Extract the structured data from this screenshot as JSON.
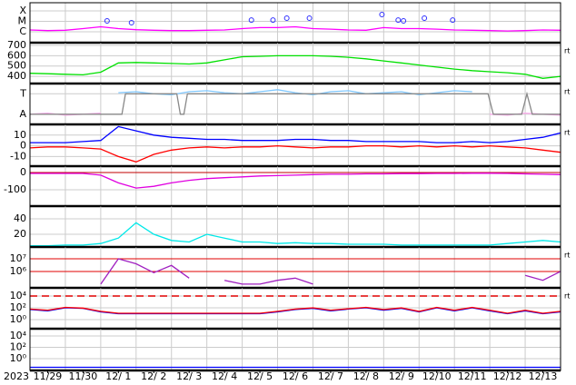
{
  "chart_data": {
    "type": "panels",
    "year_label": "2023",
    "xlim": [
      0,
      15
    ],
    "xticks": [
      {
        "value": 0.5,
        "label": "11/29"
      },
      {
        "value": 1.5,
        "label": "11/30"
      },
      {
        "value": 2.5,
        "label": "12/ 1"
      },
      {
        "value": 3.5,
        "label": "12/ 2"
      },
      {
        "value": 4.5,
        "label": "12/ 3"
      },
      {
        "value": 5.5,
        "label": "12/ 4"
      },
      {
        "value": 6.5,
        "label": "12/ 5"
      },
      {
        "value": 7.5,
        "label": "12/ 6"
      },
      {
        "value": 8.5,
        "label": "12/ 7"
      },
      {
        "value": 9.5,
        "label": "12/ 8"
      },
      {
        "value": 10.5,
        "label": "12/ 9"
      },
      {
        "value": 11.5,
        "label": "12/10"
      },
      {
        "value": 12.5,
        "label": "12/11"
      },
      {
        "value": 13.5,
        "label": "12/12"
      },
      {
        "value": 14.5,
        "label": "12/13"
      }
    ],
    "xgrid": [
      1,
      2,
      3,
      4,
      5,
      6,
      7,
      8,
      9,
      10,
      11,
      12,
      13,
      14
    ],
    "x": [
      0,
      0.5,
      1,
      1.5,
      2,
      2.5,
      3,
      3.5,
      4,
      4.5,
      5,
      5.5,
      6,
      6.5,
      7,
      7.5,
      8,
      8.5,
      9,
      9.5,
      10,
      10.5,
      11,
      11.5,
      12,
      12.5,
      13,
      13.5,
      14,
      14.5,
      15
    ],
    "panels": [
      {
        "yscale": "log",
        "ylim": [
          9.1e-08,
          0.0006
        ],
        "yticks": [
          {
            "value": 1e-06,
            "label": "C"
          },
          {
            "value": 1e-05,
            "label": "M"
          },
          {
            "value": 0.0001,
            "label": "X"
          }
        ],
        "series": [
          {
            "color": "#ff00ff",
            "values": [
              1.5e-06,
              1.3e-06,
              1.4e-06,
              2e-06,
              3e-06,
              2e-06,
              1.6e-06,
              1.4e-06,
              1.3e-06,
              1.3e-06,
              1.4e-06,
              1.5e-06,
              2e-06,
              2.5e-06,
              2.5e-06,
              3e-06,
              2e-06,
              1.8e-06,
              1.5e-06,
              1.4e-06,
              2.5e-06,
              2e-06,
              2e-06,
              1.8e-06,
              1.5e-06,
              1.4e-06,
              1.3e-06,
              1.2e-06,
              1.3e-06,
              1.5e-06,
              1.4e-06
            ]
          }
        ],
        "events": {
          "color": "#3030ff",
          "x": [
            2.18,
            2.87,
            6.26,
            6.87,
            7.26,
            7.9,
            9.95,
            10.41,
            10.56,
            11.15,
            11.95
          ],
          "values": [
            1.1e-05,
            7.4e-06,
            1.3e-05,
            1.3e-05,
            2e-05,
            2e-05,
            4.5e-05,
            1.3e-05,
            1.1e-05,
            2e-05,
            1.3e-05
          ]
        }
      },
      {
        "yscale": "linear",
        "ylim": [
          330,
          727
        ],
        "yticks": [
          400,
          500,
          600,
          700
        ],
        "note": "rt",
        "series": [
          {
            "color": "#00e000",
            "values": [
              430,
              425,
              420,
              415,
              440,
              530,
              535,
              530,
              525,
              520,
              530,
              560,
              590,
              595,
              600,
              600,
              600,
              595,
              585,
              570,
              550,
              530,
              510,
              490,
              470,
              455,
              445,
              435,
              420,
              380,
              400
            ]
          }
        ]
      },
      {
        "yscale": "linear",
        "ylim": [
          -2,
          2
        ],
        "yticks": [
          {
            "value": -1,
            "label": "A"
          },
          {
            "value": 1,
            "label": "T"
          }
        ],
        "note": "rt",
        "series": [
          {
            "color": "#ffaaee",
            "values": [
              -1,
              -0.9,
              -1.1,
              -1,
              -0.9,
              null,
              null,
              null,
              null,
              null,
              null,
              null,
              null,
              null,
              null,
              null,
              null,
              null,
              null,
              null,
              null,
              null,
              null,
              null,
              null,
              null,
              -1,
              -1.1,
              -0.9,
              -1,
              -1.1
            ]
          },
          {
            "color": "#80c8ff",
            "values": [
              null,
              null,
              null,
              null,
              null,
              1.1,
              1.2,
              1.0,
              0.9,
              1.2,
              1.3,
              1.1,
              1.0,
              1.2,
              1.4,
              1.1,
              0.9,
              1.2,
              1.3,
              1.0,
              1.1,
              1.2,
              0.9,
              1.1,
              1.3,
              1.2,
              null,
              null,
              null,
              null,
              null
            ]
          },
          {
            "color": "#888888",
            "x": [
              0,
              2.6,
              2.7,
              4.15,
              4.25,
              4.35,
              4.45,
              12.95,
              13.1,
              13.9,
              14.05,
              14.2,
              15
            ],
            "values": [
              -1,
              -1,
              1,
              1,
              -1,
              -1,
              1,
              1,
              -1,
              -1,
              1,
              -1,
              -1
            ]
          }
        ]
      },
      {
        "yscale": "linear",
        "ylim": [
          -19,
          20
        ],
        "yticks": [
          -10,
          0,
          10
        ],
        "note": "rt",
        "series": [
          {
            "color": "#0000ff",
            "values": [
              3,
              3,
              3,
              4,
              5,
              18,
              14,
              10,
              8,
              7,
              6,
              6,
              5,
              5,
              5,
              6,
              6,
              5,
              5,
              4,
              4,
              4,
              4,
              3,
              3,
              4,
              3,
              4,
              6,
              8,
              12
            ]
          },
          {
            "color": "#ff0000",
            "values": [
              -2,
              -1,
              -1,
              -2,
              -3,
              -10,
              -15,
              -8,
              -4,
              -2,
              -1,
              -2,
              -1,
              -1,
              0,
              -1,
              -2,
              -1,
              -1,
              0,
              0,
              -1,
              0,
              -1,
              0,
              -1,
              0,
              -1,
              -2,
              -4,
              -6
            ]
          }
        ]
      },
      {
        "yscale": "linear",
        "ylim": [
          -195,
          37
        ],
        "yticks": [
          -100,
          0
        ],
        "hlines": [
          0
        ],
        "hline_color": "#c00000",
        "series": [
          {
            "color": "#e000e0",
            "values": [
              -5,
              -5,
              -5,
              -5,
              -15,
              -60,
              -90,
              -80,
              -60,
              -45,
              -35,
              -30,
              -25,
              -20,
              -18,
              -15,
              -12,
              -10,
              -10,
              -8,
              -8,
              -6,
              -6,
              -5,
              -5,
              -4,
              -4,
              -5,
              -8,
              -10,
              -12
            ]
          }
        ]
      },
      {
        "yscale": "linear",
        "ylim": [
          3.5,
          56.5
        ],
        "yticks": [
          20,
          40
        ],
        "series": [
          {
            "color": "#00e8e8",
            "values": [
              5,
              5,
              6,
              6,
              8,
              15,
              35,
              20,
              12,
              10,
              20,
              15,
              10,
              10,
              8,
              9,
              8,
              8,
              7,
              7,
              7,
              6,
              6,
              6,
              6,
              6,
              6,
              8,
              10,
              12,
              10
            ]
          }
        ]
      },
      {
        "yscale": "log",
        "ylim": [
          51000,
          85000000
        ],
        "yticks": [
          {
            "value": 1000000,
            "label": "10⁶"
          },
          {
            "value": 10000000,
            "label": "10⁷"
          }
        ],
        "hlines": [
          10000000,
          1000000
        ],
        "hline_color": "#e00000",
        "note": "rt",
        "series": [
          {
            "color": "#a020c0",
            "values": [
              null,
              null,
              null,
              null,
              100000,
              10000000,
              4000000,
              800000,
              3000000,
              300000,
              null,
              200000,
              100000,
              100000,
              200000,
              300000,
              100000,
              null,
              null,
              null,
              null,
              null,
              null,
              null,
              null,
              null,
              null,
              null,
              500000,
              200000,
              1000000
            ]
          }
        ]
      },
      {
        "yscale": "log",
        "ylim": [
          0.029,
          240000
        ],
        "yticks": [
          {
            "value": 1,
            "label": "10⁰"
          },
          {
            "value": 100,
            "label": "10²"
          },
          {
            "value": 10000,
            "label": "10⁴"
          }
        ],
        "hlines": [
          10000
        ],
        "hline_color": "#e00000",
        "hline_dash": true,
        "note": "rt",
        "series": [
          {
            "color": "#0000ff",
            "values": [
              50,
              30,
              100,
              80,
              20,
              10,
              10,
              10,
              10,
              10,
              10,
              10,
              10,
              10,
              20,
              50,
              80,
              30,
              60,
              100,
              40,
              80,
              20,
              100,
              30,
              100,
              30,
              10,
              30,
              10,
              20
            ]
          },
          {
            "color": "#ff0000",
            "values": [
              60,
              40,
              120,
              90,
              25,
              12,
              12,
              12,
              12,
              12,
              12,
              12,
              12,
              12,
              25,
              60,
              100,
              40,
              70,
              120,
              50,
              100,
              25,
              120,
              40,
              120,
              40,
              12,
              40,
              12,
              25
            ]
          }
        ]
      },
      {
        "yscale": "log",
        "ylim": [
          0.0083,
          190000
        ],
        "yticks": [
          {
            "value": 1,
            "label": "10⁰"
          },
          {
            "value": 100,
            "label": "10²"
          },
          {
            "value": 10000,
            "label": "10⁴"
          }
        ],
        "series": [
          {
            "color": "#0000ff",
            "values": [
              0.03,
              0.03,
              0.03,
              0.03,
              0.03,
              0.03,
              0.03,
              0.03,
              0.03,
              0.03,
              0.03,
              0.03,
              0.03,
              0.03,
              0.03,
              0.03,
              0.03,
              0.03,
              0.03,
              0.03,
              0.03,
              0.03,
              0.03,
              0.03,
              0.03,
              0.03,
              0.03,
              0.03,
              0.03,
              0.03,
              0.03
            ]
          }
        ]
      }
    ]
  }
}
